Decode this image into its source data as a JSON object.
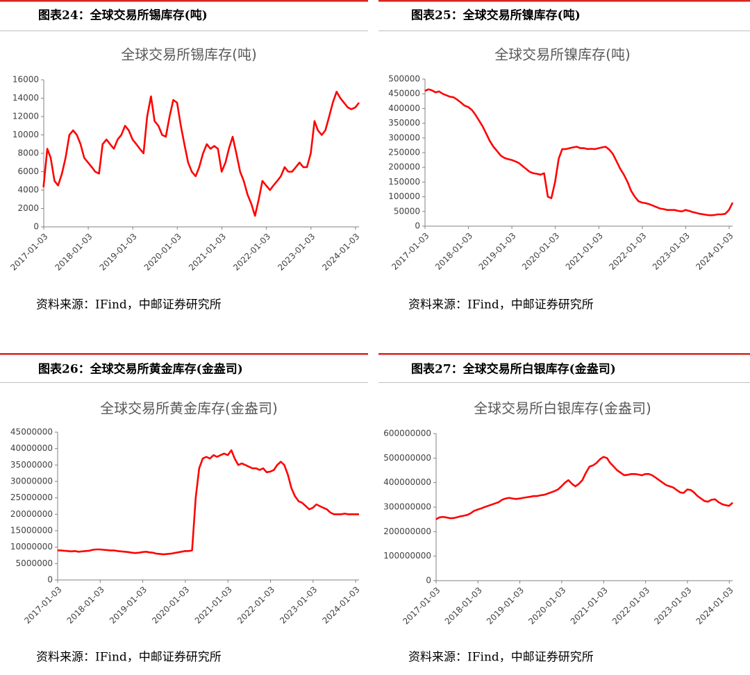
{
  "figures": [
    {
      "caption": "图表24：全球交易所锡库存(吨)",
      "source": "资料来源：IFind，中邮证券研究所"
    },
    {
      "caption": "图表25：全球交易所镍库存(吨)",
      "source": "资料来源：IFind，中邮证券研究所"
    },
    {
      "caption": "图表26：全球交易所黄金库存(金盎司)",
      "source": "资料来源：IFind，中邮证券研究所"
    },
    {
      "caption": "图表27：全球交易所白银库存(金盎司)",
      "source": "资料来源：IFind，中邮证券研究所"
    }
  ],
  "chart_data": [
    {
      "type": "line",
      "title": "全球交易所锡库存(吨)",
      "x": [
        "2017-01",
        "2017-02",
        "2017-03",
        "2017-04",
        "2017-05",
        "2017-06",
        "2017-07",
        "2017-08",
        "2017-09",
        "2017-10",
        "2017-11",
        "2017-12",
        "2018-01",
        "2018-02",
        "2018-03",
        "2018-04",
        "2018-05",
        "2018-06",
        "2018-07",
        "2018-08",
        "2018-09",
        "2018-10",
        "2018-11",
        "2018-12",
        "2019-01",
        "2019-02",
        "2019-03",
        "2019-04",
        "2019-05",
        "2019-06",
        "2019-07",
        "2019-08",
        "2019-09",
        "2019-10",
        "2019-11",
        "2019-12",
        "2020-01",
        "2020-02",
        "2020-03",
        "2020-04",
        "2020-05",
        "2020-06",
        "2020-07",
        "2020-08",
        "2020-09",
        "2020-10",
        "2020-11",
        "2020-12",
        "2021-01",
        "2021-02",
        "2021-03",
        "2021-04",
        "2021-05",
        "2021-06",
        "2021-07",
        "2021-08",
        "2021-09",
        "2021-10",
        "2021-11",
        "2021-12",
        "2022-01",
        "2022-02",
        "2022-03",
        "2022-04",
        "2022-05",
        "2022-06",
        "2022-07",
        "2022-08",
        "2022-09",
        "2022-10",
        "2022-11",
        "2022-12",
        "2023-01",
        "2023-02",
        "2023-03",
        "2023-04",
        "2023-05",
        "2023-06",
        "2023-07",
        "2023-08",
        "2023-09",
        "2023-10",
        "2023-11",
        "2023-12",
        "2024-01",
        "2024-02"
      ],
      "series": [
        {
          "color": "#ff0000",
          "values": [
            4300,
            8500,
            7500,
            5000,
            4500,
            5800,
            7500,
            10000,
            10500,
            10000,
            9000,
            7500,
            7000,
            6500,
            6000,
            5800,
            9000,
            9500,
            9000,
            8500,
            9500,
            10000,
            11000,
            10500,
            9500,
            9000,
            8500,
            8000,
            12000,
            14200,
            11500,
            11000,
            10000,
            9800,
            12000,
            13800,
            13500,
            11000,
            9000,
            7000,
            6000,
            5500,
            6500,
            8000,
            9000,
            8500,
            8800,
            8500,
            6000,
            7000,
            8500,
            9800,
            8000,
            6000,
            5000,
            3500,
            2500,
            1200,
            3000,
            5000,
            4500,
            4000,
            4500,
            5000,
            5500,
            6500,
            6000,
            6000,
            6500,
            7000,
            6500,
            6500,
            8000,
            11500,
            10500,
            10000,
            10500,
            12000,
            13500,
            14700,
            14000,
            13500,
            13000,
            12800,
            13000,
            13500
          ]
        }
      ],
      "xlim": [
        "2017-01-03",
        "2024-02"
      ],
      "xticks": [
        "2017-01-03",
        "2018-01-03",
        "2019-01-03",
        "2020-01-03",
        "2021-01-03",
        "2022-01-03",
        "2023-01-03",
        "2024-01-03"
      ],
      "ylim": [
        0,
        16000
      ],
      "yticks": [
        0,
        2000,
        4000,
        6000,
        8000,
        10000,
        12000,
        14000,
        16000
      ]
    },
    {
      "type": "line",
      "title": "全球交易所镍库存(吨)",
      "x": [
        "2017-01",
        "2017-02",
        "2017-03",
        "2017-04",
        "2017-05",
        "2017-06",
        "2017-07",
        "2017-08",
        "2017-09",
        "2017-10",
        "2017-11",
        "2017-12",
        "2018-01",
        "2018-02",
        "2018-03",
        "2018-04",
        "2018-05",
        "2018-06",
        "2018-07",
        "2018-08",
        "2018-09",
        "2018-10",
        "2018-11",
        "2018-12",
        "2019-01",
        "2019-02",
        "2019-03",
        "2019-04",
        "2019-05",
        "2019-06",
        "2019-07",
        "2019-08",
        "2019-09",
        "2019-10",
        "2019-11",
        "2019-12",
        "2020-01",
        "2020-02",
        "2020-03",
        "2020-04",
        "2020-05",
        "2020-06",
        "2020-07",
        "2020-08",
        "2020-09",
        "2020-10",
        "2020-11",
        "2020-12",
        "2021-01",
        "2021-02",
        "2021-03",
        "2021-04",
        "2021-05",
        "2021-06",
        "2021-07",
        "2021-08",
        "2021-09",
        "2021-10",
        "2021-11",
        "2021-12",
        "2022-01",
        "2022-02",
        "2022-03",
        "2022-04",
        "2022-05",
        "2022-06",
        "2022-07",
        "2022-08",
        "2022-09",
        "2022-10",
        "2022-11",
        "2022-12",
        "2023-01",
        "2023-02",
        "2023-03",
        "2023-04",
        "2023-05",
        "2023-06",
        "2023-07",
        "2023-08",
        "2023-09",
        "2023-10",
        "2023-11",
        "2023-12",
        "2024-01",
        "2024-02"
      ],
      "series": [
        {
          "color": "#ff0000",
          "values": [
            460000,
            465000,
            462000,
            455000,
            458000,
            450000,
            445000,
            440000,
            438000,
            430000,
            420000,
            410000,
            405000,
            395000,
            380000,
            360000,
            340000,
            315000,
            290000,
            270000,
            255000,
            240000,
            232000,
            228000,
            225000,
            220000,
            215000,
            205000,
            195000,
            185000,
            180000,
            178000,
            175000,
            180000,
            100000,
            95000,
            150000,
            230000,
            262000,
            262000,
            265000,
            268000,
            270000,
            265000,
            265000,
            262000,
            263000,
            262000,
            265000,
            268000,
            270000,
            260000,
            245000,
            220000,
            195000,
            175000,
            150000,
            120000,
            100000,
            85000,
            80000,
            78000,
            75000,
            70000,
            65000,
            60000,
            58000,
            55000,
            55000,
            55000,
            52000,
            50000,
            55000,
            52000,
            48000,
            45000,
            42000,
            40000,
            38000,
            37000,
            38000,
            40000,
            40000,
            42000,
            55000,
            80000
          ]
        }
      ],
      "xlim": [
        "2017-01-03",
        "2024-02"
      ],
      "xticks": [
        "2017-01-03",
        "2018-01-03",
        "2019-01-03",
        "2020-01-03",
        "2021-01-03",
        "2022-01-03",
        "2023-01-03",
        "2024-01-03"
      ],
      "ylim": [
        0,
        500000
      ],
      "yticks": [
        0,
        50000,
        100000,
        150000,
        200000,
        250000,
        300000,
        350000,
        400000,
        450000,
        500000
      ]
    },
    {
      "type": "line",
      "title": "全球交易所黄金库存(金盎司)",
      "x": [
        "2017-01",
        "2017-02",
        "2017-03",
        "2017-04",
        "2017-05",
        "2017-06",
        "2017-07",
        "2017-08",
        "2017-09",
        "2017-10",
        "2017-11",
        "2017-12",
        "2018-01",
        "2018-02",
        "2018-03",
        "2018-04",
        "2018-05",
        "2018-06",
        "2018-07",
        "2018-08",
        "2018-09",
        "2018-10",
        "2018-11",
        "2018-12",
        "2019-01",
        "2019-02",
        "2019-03",
        "2019-04",
        "2019-05",
        "2019-06",
        "2019-07",
        "2019-08",
        "2019-09",
        "2019-10",
        "2019-11",
        "2019-12",
        "2020-01",
        "2020-02",
        "2020-03",
        "2020-04",
        "2020-05",
        "2020-06",
        "2020-07",
        "2020-08",
        "2020-09",
        "2020-10",
        "2020-11",
        "2020-12",
        "2021-01",
        "2021-02",
        "2021-03",
        "2021-04",
        "2021-05",
        "2021-06",
        "2021-07",
        "2021-08",
        "2021-09",
        "2021-10",
        "2021-11",
        "2021-12",
        "2022-01",
        "2022-02",
        "2022-03",
        "2022-04",
        "2022-05",
        "2022-06",
        "2022-07",
        "2022-08",
        "2022-09",
        "2022-10",
        "2022-11",
        "2022-12",
        "2023-01",
        "2023-02",
        "2023-03",
        "2023-04",
        "2023-05",
        "2023-06",
        "2023-07",
        "2023-08",
        "2023-09",
        "2023-10",
        "2023-11",
        "2023-12",
        "2024-01",
        "2024-02"
      ],
      "series": [
        {
          "color": "#ff0000",
          "values": [
            9000000,
            9000000,
            8900000,
            8800000,
            8700000,
            8800000,
            8600000,
            8700000,
            8800000,
            8900000,
            9200000,
            9300000,
            9300000,
            9200000,
            9100000,
            9000000,
            9000000,
            8800000,
            8700000,
            8600000,
            8500000,
            8300000,
            8200000,
            8300000,
            8500000,
            8600000,
            8400000,
            8300000,
            8000000,
            7900000,
            7800000,
            7900000,
            8000000,
            8200000,
            8400000,
            8600000,
            8800000,
            8800000,
            9000000,
            25000000,
            34000000,
            37000000,
            37500000,
            37000000,
            38000000,
            37500000,
            38000000,
            38500000,
            38000000,
            39500000,
            37000000,
            35000000,
            35500000,
            35000000,
            34500000,
            34000000,
            34000000,
            33500000,
            34000000,
            32800000,
            33000000,
            33500000,
            35000000,
            36000000,
            35000000,
            32000000,
            28000000,
            25500000,
            24000000,
            23500000,
            22500000,
            21500000,
            22000000,
            23000000,
            22500000,
            22000000,
            21500000,
            20500000,
            20000000,
            20000000,
            20000000,
            20200000,
            20000000,
            20000000,
            20000000,
            20000000
          ]
        }
      ],
      "xlim": [
        "2017-01-03",
        "2024-02"
      ],
      "xticks": [
        "2017-01-03",
        "2018-01-03",
        "2019-01-03",
        "2020-01-03",
        "2021-01-03",
        "2022-01-03",
        "2023-01-03",
        "2024-01-03"
      ],
      "ylim": [
        0,
        45000000
      ],
      "yticks": [
        0,
        5000000,
        10000000,
        15000000,
        20000000,
        25000000,
        30000000,
        35000000,
        40000000,
        45000000
      ]
    },
    {
      "type": "line",
      "title": "全球交易所白银库存(金盎司)",
      "x": [
        "2017-01",
        "2017-02",
        "2017-03",
        "2017-04",
        "2017-05",
        "2017-06",
        "2017-07",
        "2017-08",
        "2017-09",
        "2017-10",
        "2017-11",
        "2017-12",
        "2018-01",
        "2018-02",
        "2018-03",
        "2018-04",
        "2018-05",
        "2018-06",
        "2018-07",
        "2018-08",
        "2018-09",
        "2018-10",
        "2018-11",
        "2018-12",
        "2019-01",
        "2019-02",
        "2019-03",
        "2019-04",
        "2019-05",
        "2019-06",
        "2019-07",
        "2019-08",
        "2019-09",
        "2019-10",
        "2019-11",
        "2019-12",
        "2020-01",
        "2020-02",
        "2020-03",
        "2020-04",
        "2020-05",
        "2020-06",
        "2020-07",
        "2020-08",
        "2020-09",
        "2020-10",
        "2020-11",
        "2020-12",
        "2021-01",
        "2021-02",
        "2021-03",
        "2021-04",
        "2021-05",
        "2021-06",
        "2021-07",
        "2021-08",
        "2021-09",
        "2021-10",
        "2021-11",
        "2021-12",
        "2022-01",
        "2022-02",
        "2022-03",
        "2022-04",
        "2022-05",
        "2022-06",
        "2022-07",
        "2022-08",
        "2022-09",
        "2022-10",
        "2022-11",
        "2022-12",
        "2023-01",
        "2023-02",
        "2023-03",
        "2023-04",
        "2023-05",
        "2023-06",
        "2023-07",
        "2023-08",
        "2023-09",
        "2023-10",
        "2023-11",
        "2023-12",
        "2024-01",
        "2024-02"
      ],
      "series": [
        {
          "color": "#ff0000",
          "values": [
            250000000,
            258000000,
            260000000,
            258000000,
            255000000,
            255000000,
            258000000,
            262000000,
            265000000,
            268000000,
            275000000,
            285000000,
            290000000,
            295000000,
            300000000,
            305000000,
            310000000,
            315000000,
            320000000,
            330000000,
            335000000,
            338000000,
            335000000,
            333000000,
            335000000,
            338000000,
            340000000,
            342000000,
            345000000,
            345000000,
            348000000,
            350000000,
            355000000,
            360000000,
            365000000,
            372000000,
            385000000,
            400000000,
            410000000,
            395000000,
            385000000,
            395000000,
            410000000,
            440000000,
            465000000,
            470000000,
            480000000,
            495000000,
            505000000,
            500000000,
            480000000,
            465000000,
            450000000,
            440000000,
            430000000,
            432000000,
            435000000,
            435000000,
            433000000,
            430000000,
            435000000,
            435000000,
            430000000,
            420000000,
            410000000,
            400000000,
            390000000,
            385000000,
            380000000,
            370000000,
            360000000,
            358000000,
            372000000,
            370000000,
            360000000,
            345000000,
            335000000,
            325000000,
            322000000,
            330000000,
            332000000,
            320000000,
            312000000,
            308000000,
            305000000,
            318000000
          ]
        }
      ],
      "xlim": [
        "2017-01-03",
        "2024-02"
      ],
      "xticks": [
        "2017-01-03",
        "2018-01-03",
        "2019-01-03",
        "2020-01-03",
        "2021-01-03",
        "2022-01-03",
        "2023-01-03",
        "2024-01-03"
      ],
      "ylim": [
        0,
        600000000
      ],
      "yticks": [
        0,
        100000000,
        200000000,
        300000000,
        400000000,
        500000000,
        600000000
      ]
    }
  ]
}
